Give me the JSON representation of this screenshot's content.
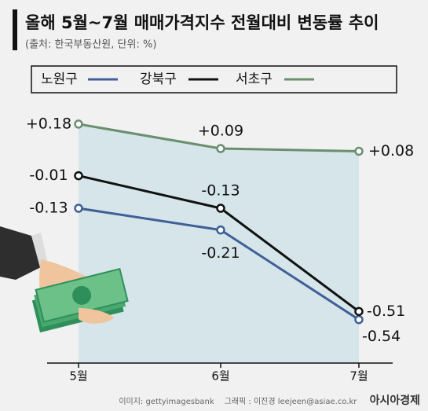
{
  "chart_data": {
    "type": "line",
    "title": "올해 5월~7월 매매가격지수 전월대비 변동률 추이",
    "subtitle": "(출처: 한국부동산원, 단위: %)",
    "categories": [
      "5월",
      "6월",
      "7월"
    ],
    "series": [
      {
        "name": "노원구",
        "color": "#3f5f97",
        "values": [
          -0.13,
          -0.21,
          -0.54
        ]
      },
      {
        "name": "강북구",
        "color": "#111111",
        "values": [
          -0.01,
          -0.13,
          -0.51
        ]
      },
      {
        "name": "서초구",
        "color": "#6a8f6f",
        "values": [
          0.18,
          0.09,
          0.08
        ],
        "value_labels": [
          "+0.18",
          "+0.09",
          "+0.08"
        ]
      }
    ],
    "ylim": [
      -0.7,
      0.2
    ],
    "area_color": "#d5e5e9",
    "credits": {
      "image": "이미지: gettyimagesbank",
      "graphic": "그래픽 : 이진경 leejeen@asiae.co.kr",
      "logo": "아시아경제"
    }
  }
}
